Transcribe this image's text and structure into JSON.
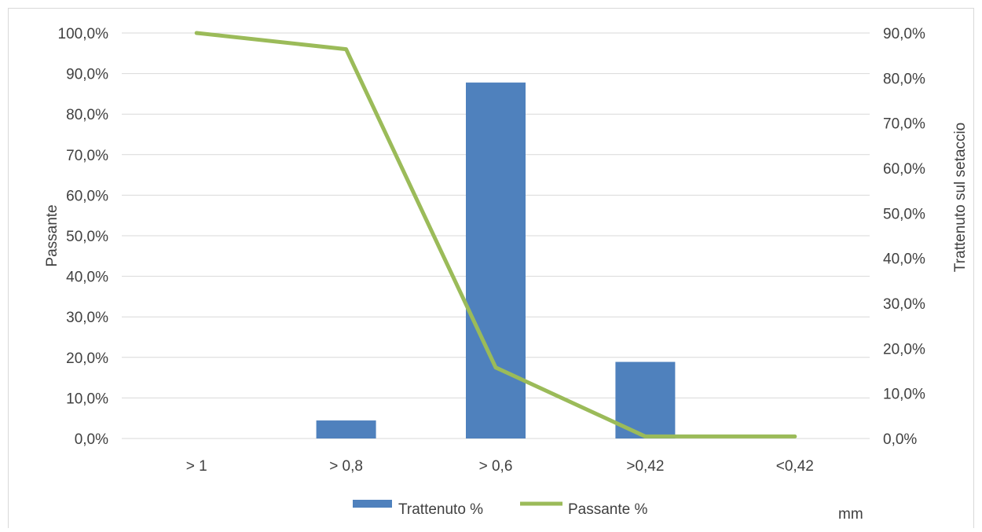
{
  "chart_data": {
    "type": "bar",
    "categories": [
      "> 1",
      "> 0,8",
      "> 0,6",
      ">0,42",
      "<0,42"
    ],
    "series": [
      {
        "name": "Trattenuto %",
        "kind": "bar",
        "axis": "right",
        "color": "#4F81BD",
        "values": [
          0.0,
          4.0,
          79.0,
          17.0,
          0.0
        ]
      },
      {
        "name": "Passante %",
        "kind": "line",
        "axis": "left",
        "color": "#9BBB59",
        "values": [
          100.0,
          96.0,
          17.5,
          0.5,
          0.5
        ]
      }
    ],
    "ylabel": "Passante",
    "y2label": "Trattenuto sul setaccio",
    "xlabel": "mm",
    "ylim": [
      0,
      100
    ],
    "y2lim": [
      0,
      90
    ],
    "yticks": [
      "0,0%",
      "10,0%",
      "20,0%",
      "30,0%",
      "40,0%",
      "50,0%",
      "60,0%",
      "70,0%",
      "80,0%",
      "90,0%",
      "100,0%"
    ],
    "y2ticks": [
      "0,0%",
      "10,0%",
      "20,0%",
      "30,0%",
      "40,0%",
      "50,0%",
      "60,0%",
      "70,0%",
      "80,0%",
      "90,0%"
    ],
    "grid": true,
    "legend": "bottom-center"
  }
}
